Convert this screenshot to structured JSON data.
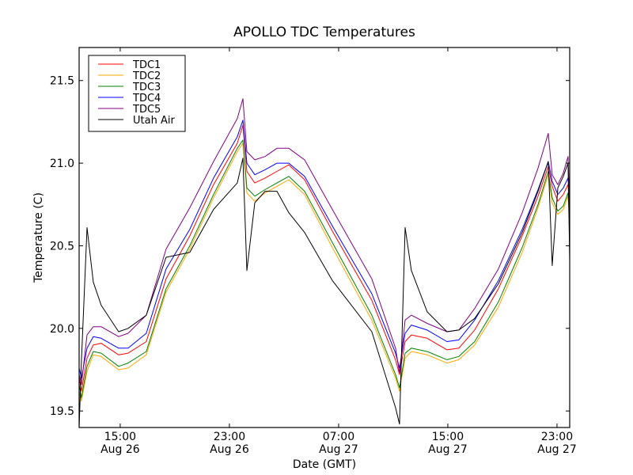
{
  "chart_data": {
    "type": "line",
    "title": "APOLLO TDC Temperatures",
    "xlabel": "Date (GMT)",
    "ylabel": "Temperature (C)",
    "x_units": "hours since 15:00 Aug 26 (GMT)",
    "xlim": [
      -3.01,
      32.93
    ],
    "ylim": [
      19.4,
      21.7
    ],
    "grid": false,
    "legend_position": "top-left",
    "x_ticks": [
      {
        "value": 0,
        "line1": "15:00",
        "line2": "Aug 26"
      },
      {
        "value": 8,
        "line1": "23:00",
        "line2": "Aug 26"
      },
      {
        "value": 16,
        "line1": "07:00",
        "line2": "Aug 27"
      },
      {
        "value": 24,
        "line1": "15:00",
        "line2": "Aug 27"
      },
      {
        "value": 32,
        "line1": "23:00",
        "line2": "Aug 27"
      }
    ],
    "y_ticks": [
      {
        "value": 19.5,
        "label": "19.5"
      },
      {
        "value": 20.0,
        "label": "20.0"
      },
      {
        "value": 20.5,
        "label": "20.5"
      },
      {
        "value": 21.0,
        "label": "21.0"
      },
      {
        "value": 21.5,
        "label": "21.5"
      }
    ],
    "x": [
      -3.01,
      -2.84,
      -2.43,
      -1.97,
      -1.39,
      -0.12,
      0.58,
      1.91,
      3.36,
      5.1,
      6.84,
      8.58,
      8.99,
      9.28,
      9.86,
      10.61,
      11.48,
      12.35,
      13.51,
      15.54,
      18.43,
      20.17,
      20.46,
      20.87,
      21.33,
      22.49,
      23.94,
      24.81,
      25.97,
      27.71,
      29.45,
      30.61,
      31.36,
      31.65,
      32.06,
      32.46,
      32.81,
      32.93
    ],
    "series": [
      {
        "name": "TDC1",
        "color": "#ff0000",
        "values": [
          19.7,
          19.62,
          19.82,
          19.9,
          19.91,
          19.84,
          19.85,
          19.92,
          20.3,
          20.56,
          20.87,
          21.12,
          21.23,
          20.95,
          20.88,
          20.91,
          20.95,
          20.99,
          20.9,
          20.59,
          20.17,
          19.81,
          19.72,
          19.92,
          19.96,
          19.94,
          19.87,
          19.88,
          19.99,
          20.24,
          20.56,
          20.8,
          20.98,
          20.86,
          20.77,
          20.81,
          20.87,
          20.7
        ]
      },
      {
        "name": "TDC2",
        "color": "#ffa500",
        "values": [
          19.62,
          19.56,
          19.74,
          19.84,
          19.83,
          19.75,
          19.76,
          19.84,
          20.22,
          20.48,
          20.79,
          21.07,
          21.12,
          20.82,
          20.77,
          20.82,
          20.86,
          20.9,
          20.81,
          20.49,
          20.05,
          19.7,
          19.62,
          19.82,
          19.86,
          19.84,
          19.79,
          19.81,
          19.9,
          20.13,
          20.46,
          20.73,
          20.93,
          20.76,
          20.69,
          20.72,
          20.8,
          20.63
        ]
      },
      {
        "name": "TDC3",
        "color": "#008000",
        "values": [
          19.66,
          19.58,
          19.77,
          19.86,
          19.85,
          19.77,
          19.79,
          19.86,
          20.24,
          20.5,
          20.81,
          21.09,
          21.14,
          20.85,
          20.8,
          20.84,
          20.88,
          20.92,
          20.83,
          20.52,
          20.08,
          19.72,
          19.64,
          19.85,
          19.88,
          19.86,
          19.81,
          19.83,
          19.92,
          20.16,
          20.49,
          20.75,
          20.95,
          20.79,
          20.71,
          20.74,
          20.82,
          20.66
        ]
      },
      {
        "name": "TDC4",
        "color": "#0000ff",
        "values": [
          19.76,
          19.7,
          19.88,
          19.95,
          19.94,
          19.88,
          19.88,
          19.97,
          20.36,
          20.6,
          20.91,
          21.16,
          21.26,
          21.0,
          20.93,
          20.96,
          21.0,
          21.0,
          20.92,
          20.62,
          20.21,
          19.85,
          19.76,
          19.97,
          20.02,
          19.99,
          19.92,
          19.93,
          20.05,
          20.29,
          20.6,
          20.84,
          21.01,
          20.89,
          20.81,
          20.85,
          20.91,
          20.76
        ]
      },
      {
        "name": "TDC5",
        "color": "#800080",
        "values": [
          19.72,
          19.66,
          19.96,
          20.01,
          20.01,
          19.95,
          19.97,
          20.08,
          20.48,
          20.73,
          21.01,
          21.27,
          21.39,
          21.07,
          21.02,
          21.04,
          21.09,
          21.09,
          21.02,
          20.72,
          20.3,
          19.88,
          19.73,
          20.05,
          20.08,
          20.03,
          19.98,
          19.99,
          20.12,
          20.36,
          20.7,
          20.97,
          21.18,
          20.93,
          20.87,
          20.94,
          21.04,
          20.76
        ]
      },
      {
        "name": "Utah Air",
        "color": "#000000",
        "values": [
          19.4,
          19.8,
          20.61,
          20.28,
          20.14,
          19.98,
          20.0,
          20.08,
          20.43,
          20.46,
          20.72,
          20.88,
          21.03,
          20.35,
          20.76,
          20.83,
          20.83,
          20.7,
          20.58,
          20.29,
          19.98,
          19.52,
          19.42,
          20.61,
          20.35,
          20.1,
          19.98,
          19.99,
          20.06,
          20.27,
          20.58,
          20.83,
          21.01,
          20.38,
          20.85,
          20.92,
          21.0,
          20.41
        ]
      }
    ]
  }
}
